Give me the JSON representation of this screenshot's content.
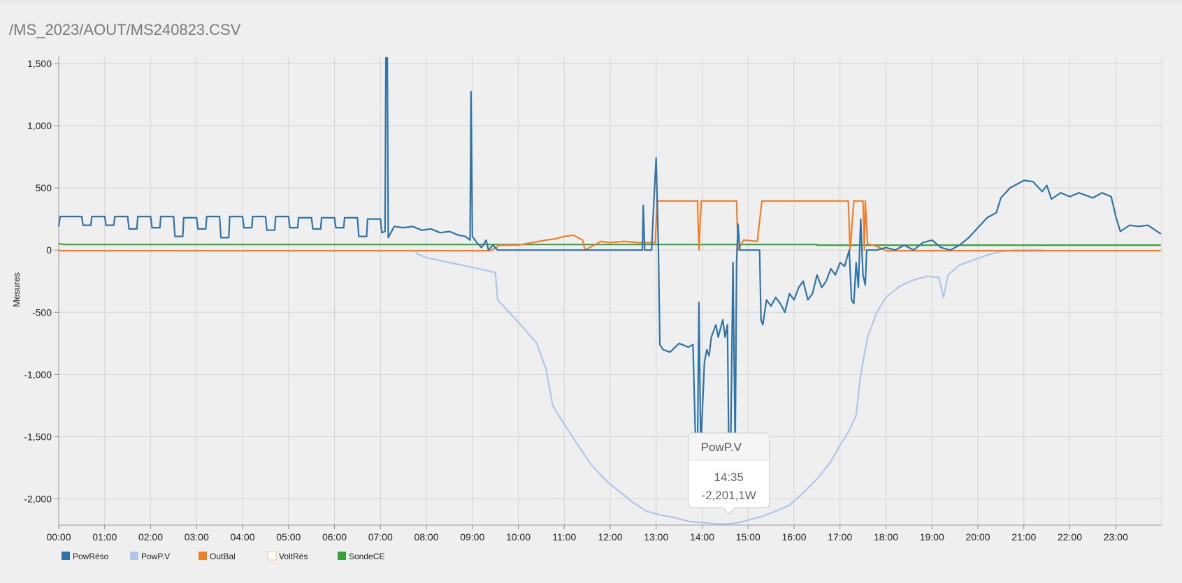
{
  "header": {
    "path": "/MS_2023/AOUT/MS240823.CSV"
  },
  "chart_data": {
    "type": "line",
    "ylabel": "Mesures",
    "xlabel": "",
    "ylim": [
      -2200,
      1550
    ],
    "yticks": [
      1500,
      1000,
      500,
      0,
      -500,
      -1000,
      -1500,
      -2000
    ],
    "ytick_labels": [
      "1,500",
      "1,000",
      "500",
      "0",
      "-500",
      "-1,000",
      "-1,500",
      "-2,000"
    ],
    "xlim": [
      0,
      24
    ],
    "xticks": [
      "00:00",
      "01:00",
      "02:00",
      "03:00",
      "04:00",
      "05:00",
      "06:00",
      "07:00",
      "08:00",
      "09:00",
      "10:00",
      "11:00",
      "12:00",
      "13:00",
      "14:00",
      "15:00",
      "16:00",
      "17:00",
      "18:00",
      "19:00",
      "20:00",
      "21:00",
      "22:00",
      "23:00"
    ],
    "grid": true,
    "legend_position": "bottom-left",
    "series": [
      {
        "name": "PowRéso",
        "color": "#2f74a8",
        "width": 2.2,
        "points": [
          [
            0.0,
            190
          ],
          [
            0.03,
            270
          ],
          [
            0.5,
            270
          ],
          [
            0.53,
            200
          ],
          [
            0.7,
            200
          ],
          [
            0.72,
            270
          ],
          [
            1.0,
            270
          ],
          [
            1.03,
            200
          ],
          [
            1.2,
            200
          ],
          [
            1.22,
            270
          ],
          [
            1.5,
            270
          ],
          [
            1.53,
            170
          ],
          [
            1.7,
            170
          ],
          [
            1.72,
            270
          ],
          [
            2.0,
            270
          ],
          [
            2.03,
            180
          ],
          [
            2.2,
            180
          ],
          [
            2.22,
            270
          ],
          [
            2.5,
            270
          ],
          [
            2.53,
            110
          ],
          [
            2.7,
            110
          ],
          [
            2.72,
            260
          ],
          [
            3.0,
            260
          ],
          [
            3.03,
            170
          ],
          [
            3.2,
            170
          ],
          [
            3.22,
            270
          ],
          [
            3.5,
            270
          ],
          [
            3.53,
            100
          ],
          [
            3.7,
            100
          ],
          [
            3.72,
            270
          ],
          [
            4.0,
            270
          ],
          [
            4.03,
            180
          ],
          [
            4.2,
            180
          ],
          [
            4.22,
            270
          ],
          [
            4.5,
            270
          ],
          [
            4.53,
            160
          ],
          [
            4.7,
            160
          ],
          [
            4.72,
            270
          ],
          [
            5.0,
            270
          ],
          [
            5.03,
            180
          ],
          [
            5.2,
            180
          ],
          [
            5.22,
            260
          ],
          [
            5.5,
            260
          ],
          [
            5.53,
            170
          ],
          [
            5.7,
            170
          ],
          [
            5.72,
            260
          ],
          [
            6.0,
            260
          ],
          [
            6.03,
            180
          ],
          [
            6.2,
            180
          ],
          [
            6.22,
            260
          ],
          [
            6.5,
            260
          ],
          [
            6.53,
            110
          ],
          [
            6.7,
            110
          ],
          [
            6.72,
            250
          ],
          [
            7.0,
            250
          ],
          [
            7.03,
            140
          ],
          [
            7.1,
            150
          ],
          [
            7.12,
            1545
          ],
          [
            7.15,
            1545
          ],
          [
            7.17,
            100
          ],
          [
            7.3,
            190
          ],
          [
            7.5,
            180
          ],
          [
            7.7,
            190
          ],
          [
            7.9,
            160
          ],
          [
            8.1,
            170
          ],
          [
            8.3,
            140
          ],
          [
            8.5,
            150
          ],
          [
            8.7,
            120
          ],
          [
            8.85,
            110
          ],
          [
            8.95,
            80
          ],
          [
            8.97,
            1275
          ],
          [
            9.0,
            110
          ],
          [
            9.1,
            60
          ],
          [
            9.2,
            20
          ],
          [
            9.3,
            80
          ],
          [
            9.35,
            0
          ],
          [
            9.45,
            40
          ],
          [
            9.55,
            0
          ],
          [
            12.7,
            0
          ],
          [
            12.72,
            360
          ],
          [
            12.75,
            0
          ],
          [
            12.9,
            0
          ],
          [
            12.95,
            400
          ],
          [
            13.0,
            740
          ],
          [
            13.05,
            0
          ],
          [
            13.08,
            -760
          ],
          [
            13.15,
            -800
          ],
          [
            13.3,
            -820
          ],
          [
            13.5,
            -750
          ],
          [
            13.7,
            -780
          ],
          [
            13.8,
            -760
          ],
          [
            13.85,
            -1450
          ],
          [
            13.9,
            -1580
          ],
          [
            13.93,
            -420
          ],
          [
            13.97,
            -1600
          ],
          [
            14.05,
            -900
          ],
          [
            14.1,
            -800
          ],
          [
            14.15,
            -850
          ],
          [
            14.2,
            -700
          ],
          [
            14.3,
            -600
          ],
          [
            14.35,
            -700
          ],
          [
            14.45,
            -560
          ],
          [
            14.5,
            -700
          ],
          [
            14.55,
            -600
          ],
          [
            14.58,
            -1580
          ],
          [
            14.62,
            -1600
          ],
          [
            14.67,
            -100
          ],
          [
            14.72,
            -1600
          ],
          [
            14.75,
            -100
          ],
          [
            14.78,
            210
          ],
          [
            14.82,
            0
          ],
          [
            15.0,
            0
          ],
          [
            15.1,
            0
          ],
          [
            15.25,
            0
          ],
          [
            15.28,
            -560
          ],
          [
            15.32,
            -600
          ],
          [
            15.4,
            -400
          ],
          [
            15.5,
            -450
          ],
          [
            15.6,
            -380
          ],
          [
            15.7,
            -430
          ],
          [
            15.8,
            -500
          ],
          [
            15.9,
            -350
          ],
          [
            16.0,
            -400
          ],
          [
            16.1,
            -300
          ],
          [
            16.2,
            -250
          ],
          [
            16.3,
            -400
          ],
          [
            16.4,
            -350
          ],
          [
            16.5,
            -200
          ],
          [
            16.6,
            -300
          ],
          [
            16.7,
            -250
          ],
          [
            16.8,
            -150
          ],
          [
            16.9,
            -200
          ],
          [
            17.0,
            -100
          ],
          [
            17.1,
            -130
          ],
          [
            17.2,
            0
          ],
          [
            17.25,
            -400
          ],
          [
            17.3,
            -430
          ],
          [
            17.35,
            -100
          ],
          [
            17.4,
            -300
          ],
          [
            17.45,
            250
          ],
          [
            17.5,
            -200
          ],
          [
            17.55,
            -280
          ],
          [
            17.58,
            0
          ],
          [
            17.8,
            0
          ],
          [
            18.0,
            20
          ],
          [
            18.2,
            0
          ],
          [
            18.4,
            40
          ],
          [
            18.6,
            0
          ],
          [
            18.8,
            60
          ],
          [
            19.0,
            80
          ],
          [
            19.2,
            20
          ],
          [
            19.4,
            0
          ],
          [
            19.6,
            40
          ],
          [
            19.8,
            100
          ],
          [
            20.0,
            180
          ],
          [
            20.2,
            260
          ],
          [
            20.4,
            300
          ],
          [
            20.5,
            420
          ],
          [
            20.7,
            500
          ],
          [
            20.9,
            540
          ],
          [
            21.0,
            560
          ],
          [
            21.2,
            550
          ],
          [
            21.4,
            470
          ],
          [
            21.5,
            520
          ],
          [
            21.6,
            410
          ],
          [
            21.8,
            460
          ],
          [
            22.0,
            430
          ],
          [
            22.2,
            460
          ],
          [
            22.5,
            420
          ],
          [
            22.7,
            460
          ],
          [
            22.9,
            430
          ],
          [
            23.0,
            270
          ],
          [
            23.1,
            150
          ],
          [
            23.3,
            200
          ],
          [
            23.5,
            190
          ],
          [
            23.7,
            200
          ],
          [
            23.98,
            130
          ]
        ]
      },
      {
        "name": "PowP.V",
        "color": "#aec7e8",
        "width": 2.2,
        "points": [
          [
            7.75,
            0
          ],
          [
            7.8,
            -30
          ],
          [
            8.0,
            -60
          ],
          [
            8.5,
            -100
          ],
          [
            9.0,
            -140
          ],
          [
            9.5,
            -180
          ],
          [
            9.55,
            -400
          ],
          [
            9.8,
            -500
          ],
          [
            10.1,
            -620
          ],
          [
            10.4,
            -750
          ],
          [
            10.6,
            -950
          ],
          [
            10.75,
            -1250
          ],
          [
            11.0,
            -1400
          ],
          [
            11.3,
            -1570
          ],
          [
            11.6,
            -1730
          ],
          [
            11.9,
            -1850
          ],
          [
            12.2,
            -1940
          ],
          [
            12.5,
            -2030
          ],
          [
            12.8,
            -2100
          ],
          [
            13.1,
            -2130
          ],
          [
            13.4,
            -2150
          ],
          [
            13.7,
            -2180
          ],
          [
            14.0,
            -2190
          ],
          [
            14.3,
            -2200
          ],
          [
            14.58,
            -2201
          ],
          [
            14.8,
            -2190
          ],
          [
            15.0,
            -2170
          ],
          [
            15.3,
            -2140
          ],
          [
            15.6,
            -2100
          ],
          [
            15.9,
            -2050
          ],
          [
            16.2,
            -1950
          ],
          [
            16.5,
            -1840
          ],
          [
            16.8,
            -1700
          ],
          [
            17.0,
            -1570
          ],
          [
            17.2,
            -1450
          ],
          [
            17.35,
            -1330
          ],
          [
            17.45,
            -1000
          ],
          [
            17.6,
            -700
          ],
          [
            17.8,
            -500
          ],
          [
            18.0,
            -380
          ],
          [
            18.3,
            -290
          ],
          [
            18.6,
            -240
          ],
          [
            18.9,
            -210
          ],
          [
            19.15,
            -220
          ],
          [
            19.25,
            -380
          ],
          [
            19.35,
            -200
          ],
          [
            19.6,
            -120
          ],
          [
            19.9,
            -80
          ],
          [
            20.2,
            -40
          ],
          [
            20.5,
            -10
          ],
          [
            20.8,
            0
          ],
          [
            21.4,
            0
          ]
        ]
      },
      {
        "name": "OutBal",
        "color": "#f07f2c",
        "width": 2.2,
        "points": [
          [
            0.0,
            -5
          ],
          [
            9.4,
            -5
          ],
          [
            9.6,
            40
          ],
          [
            10.0,
            40
          ],
          [
            10.3,
            60
          ],
          [
            10.6,
            80
          ],
          [
            10.8,
            90
          ],
          [
            11.0,
            110
          ],
          [
            11.2,
            120
          ],
          [
            11.4,
            80
          ],
          [
            11.45,
            0
          ],
          [
            11.6,
            30
          ],
          [
            11.8,
            70
          ],
          [
            12.0,
            60
          ],
          [
            12.3,
            70
          ],
          [
            12.6,
            60
          ],
          [
            12.98,
            60
          ],
          [
            13.02,
            395
          ],
          [
            13.9,
            395
          ],
          [
            13.93,
            0
          ],
          [
            13.98,
            395
          ],
          [
            14.75,
            395
          ],
          [
            14.78,
            0
          ],
          [
            14.9,
            80
          ],
          [
            15.2,
            70
          ],
          [
            15.3,
            395
          ],
          [
            17.18,
            395
          ],
          [
            17.22,
            0
          ],
          [
            17.3,
            395
          ],
          [
            17.5,
            395
          ],
          [
            17.53,
            0
          ],
          [
            17.55,
            395
          ],
          [
            17.6,
            50
          ],
          [
            17.8,
            30
          ],
          [
            18.0,
            -5
          ],
          [
            23.98,
            -5
          ]
        ]
      },
      {
        "name": "VoltRés",
        "color": "#ffd3a8",
        "width": 0,
        "points": []
      },
      {
        "name": "SondeCE",
        "color": "#36a33a",
        "width": 2.2,
        "points": [
          [
            0.0,
            50
          ],
          [
            0.05,
            50
          ],
          [
            0.1,
            45
          ],
          [
            16.5,
            45
          ],
          [
            16.5,
            40
          ],
          [
            23.98,
            40
          ]
        ]
      }
    ],
    "tooltip": {
      "series": "PowP.V",
      "time": "14:35",
      "value": "-2,201,1W",
      "x": 14.58,
      "y": -2201
    }
  }
}
